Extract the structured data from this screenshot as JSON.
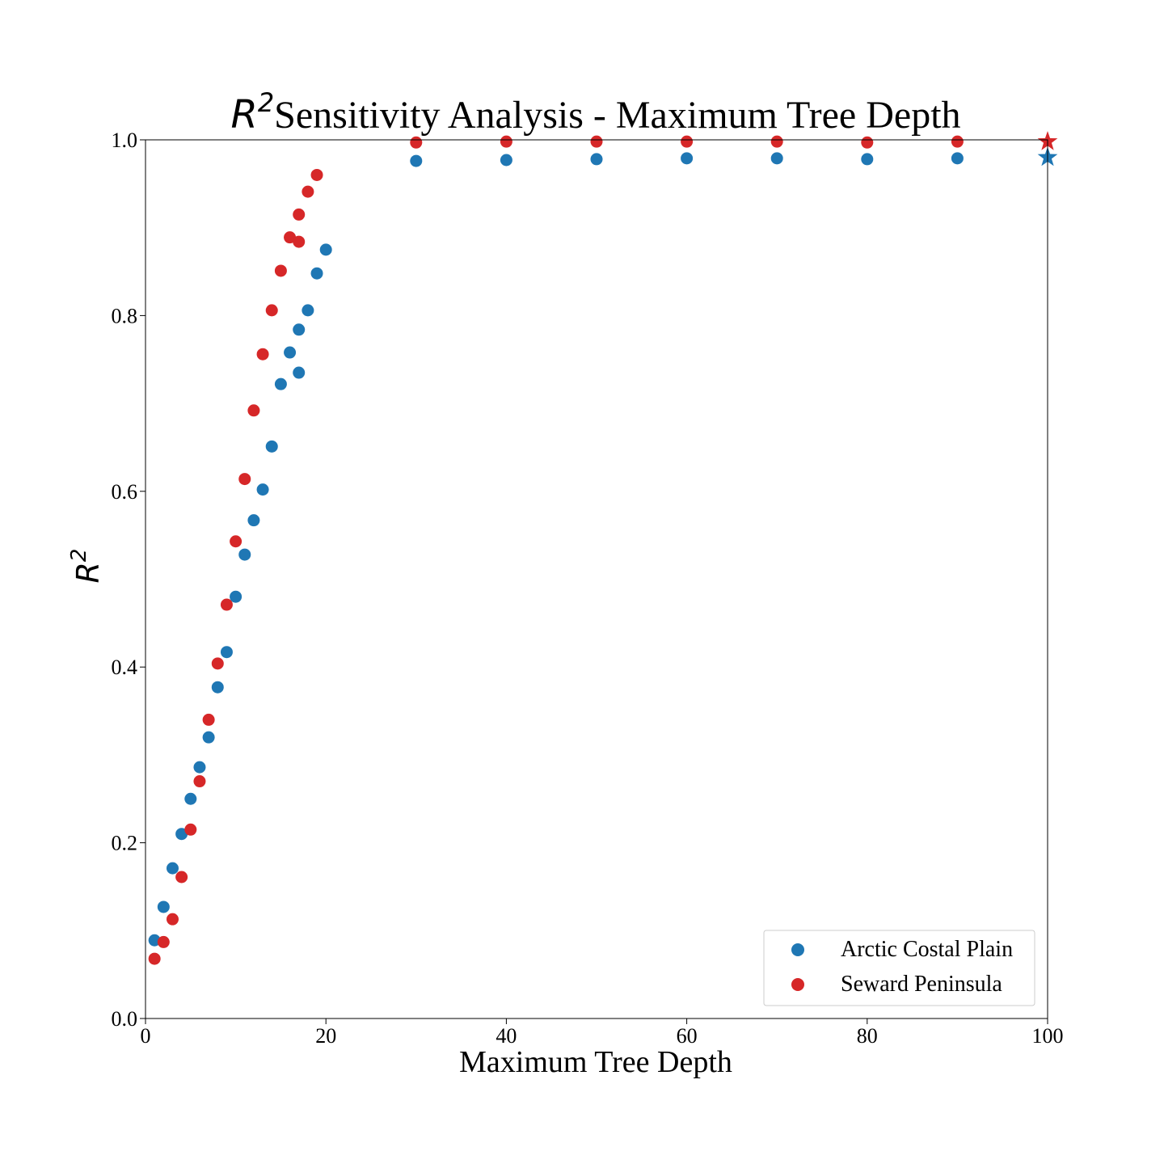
{
  "chart_data": {
    "type": "scatter",
    "title_math": "R",
    "title_math_sup": "2",
    "title_text": "Sensitivity Analysis - Maximum Tree Depth",
    "xlabel": "Maximum Tree Depth",
    "ylabel_math": "R",
    "ylabel_sup": "2",
    "xlim": [
      0,
      100
    ],
    "ylim": [
      0.0,
      1.0
    ],
    "xticks": [
      "0",
      "20",
      "40",
      "60",
      "80",
      "100"
    ],
    "yticks": [
      "0.0",
      "0.2",
      "0.4",
      "0.6",
      "0.8",
      "1.0"
    ],
    "grid": false,
    "legend_position": "bottom-right",
    "series": [
      {
        "name": "Arctic Costal Plain",
        "color": "#1f77b4",
        "marker": "circle",
        "x": [
          1,
          2,
          3,
          4,
          5,
          6,
          7,
          8,
          9,
          10,
          11,
          12,
          13,
          14,
          15,
          16,
          17,
          17,
          18,
          19,
          20,
          30,
          40,
          50,
          60,
          70,
          80,
          90
        ],
        "y": [
          0.089,
          0.127,
          0.171,
          0.21,
          0.25,
          0.286,
          0.32,
          0.377,
          0.417,
          0.48,
          0.528,
          0.567,
          0.602,
          0.651,
          0.722,
          0.758,
          0.735,
          0.784,
          0.806,
          0.848,
          0.875,
          0.976,
          0.977,
          0.978,
          0.979,
          0.979,
          0.978,
          0.979
        ],
        "best": {
          "x": 100,
          "y": 0.98,
          "marker": "star"
        }
      },
      {
        "name": "Seward Peninsula",
        "color": "#d62728",
        "marker": "circle",
        "x": [
          1,
          2,
          3,
          4,
          5,
          6,
          7,
          8,
          9,
          10,
          11,
          12,
          13,
          14,
          15,
          16,
          17,
          17,
          18,
          19,
          30,
          40,
          50,
          60,
          70,
          80,
          90
        ],
        "y": [
          0.068,
          0.087,
          0.113,
          0.161,
          0.215,
          0.27,
          0.34,
          0.404,
          0.471,
          0.543,
          0.614,
          0.692,
          0.756,
          0.806,
          0.851,
          0.889,
          0.884,
          0.915,
          0.941,
          0.96,
          0.997,
          0.998,
          0.998,
          0.998,
          0.998,
          0.997,
          0.998
        ],
        "best": {
          "x": 100,
          "y": 0.998,
          "marker": "star"
        }
      }
    ]
  }
}
